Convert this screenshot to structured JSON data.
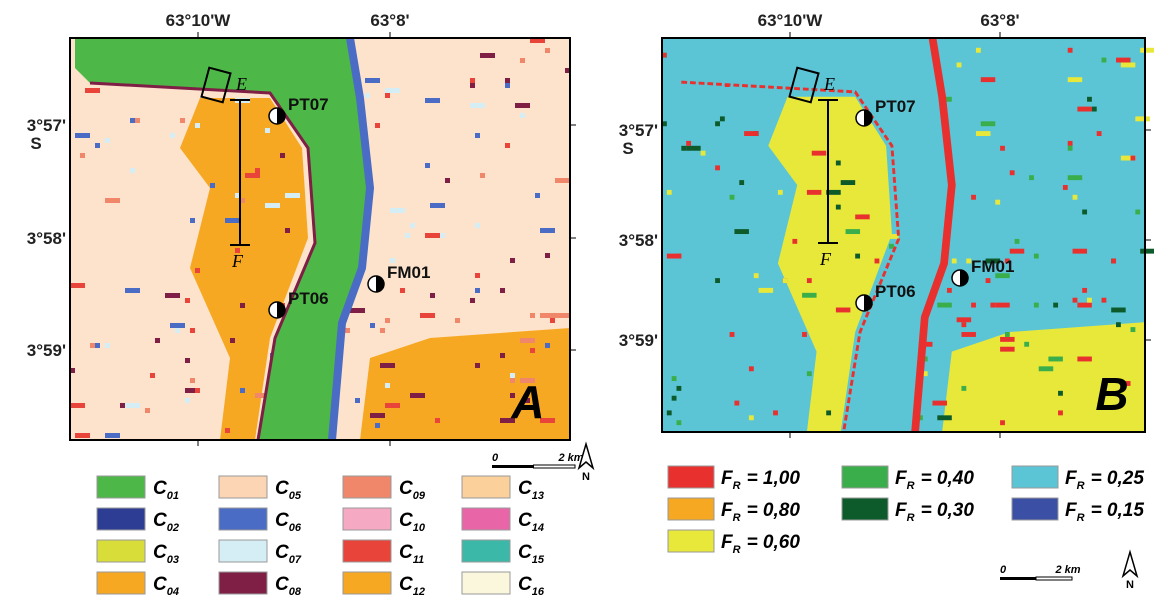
{
  "panels": [
    {
      "letter": "A",
      "lon_labels": [
        "63°10'W",
        "63°8'"
      ],
      "lat_labels": [
        "3°57'",
        "3°58'",
        "3°59'"
      ],
      "hemisphere": "S",
      "points": [
        "PT07",
        "PT06",
        "FM01"
      ],
      "transect": [
        "E",
        "F"
      ],
      "scale": [
        "0",
        "2 km"
      ],
      "north": "N",
      "legend": [
        {
          "symbol": "C",
          "sub": "01",
          "color": "#4db848"
        },
        {
          "symbol": "C",
          "sub": "02",
          "color": "#2e3d94"
        },
        {
          "symbol": "C",
          "sub": "03",
          "color": "#d8dd3a"
        },
        {
          "symbol": "C",
          "sub": "04",
          "color": "#f7a823"
        },
        {
          "symbol": "C",
          "sub": "05",
          "color": "#fcd5b4"
        },
        {
          "symbol": "C",
          "sub": "06",
          "color": "#4a6cc4"
        },
        {
          "symbol": "C",
          "sub": "07",
          "color": "#d5eef5"
        },
        {
          "symbol": "C",
          "sub": "08",
          "color": "#7f1f45"
        },
        {
          "symbol": "C",
          "sub": "09",
          "color": "#f0876a"
        },
        {
          "symbol": "C",
          "sub": "10",
          "color": "#f6a9c2"
        },
        {
          "symbol": "C",
          "sub": "11",
          "color": "#e8443a"
        },
        {
          "symbol": "C",
          "sub": "12",
          "color": "#f7a823"
        },
        {
          "symbol": "C",
          "sub": "13",
          "color": "#fcd09a"
        },
        {
          "symbol": "C",
          "sub": "14",
          "color": "#e866a8"
        },
        {
          "symbol": "C",
          "sub": "15",
          "color": "#3bb8a8"
        },
        {
          "symbol": "C",
          "sub": "16",
          "color": "#fbf7dc"
        }
      ]
    },
    {
      "letter": "B",
      "lon_labels": [
        "63°10'W",
        "63°8'"
      ],
      "lat_labels": [
        "3°57'",
        "3°58'",
        "3°59'"
      ],
      "hemisphere": "S",
      "points": [
        "PT07",
        "PT06",
        "FM01"
      ],
      "transect": [
        "E",
        "F"
      ],
      "scale": [
        "0",
        "2 km"
      ],
      "north": "N",
      "legend": [
        {
          "symbol": "F",
          "sub": "R",
          "rest": "= 1,00",
          "color": "#e8312f"
        },
        {
          "symbol": "F",
          "sub": "R",
          "rest": "= 0,80",
          "color": "#f7a823"
        },
        {
          "symbol": "F",
          "sub": "R",
          "rest": "= 0,60",
          "color": "#e8e83a"
        },
        {
          "symbol": "F",
          "sub": "R",
          "rest": "= 0,40",
          "color": "#3aae4a"
        },
        {
          "symbol": "F",
          "sub": "R",
          "rest": "= 0,30",
          "color": "#0d5a2a"
        },
        {
          "symbol": "F",
          "sub": "R",
          "rest": "= 0,25",
          "color": "#5bc5d6"
        },
        {
          "symbol": "F",
          "sub": "R",
          "rest": "= 0,15",
          "color": "#3b4fa5"
        }
      ]
    }
  ]
}
